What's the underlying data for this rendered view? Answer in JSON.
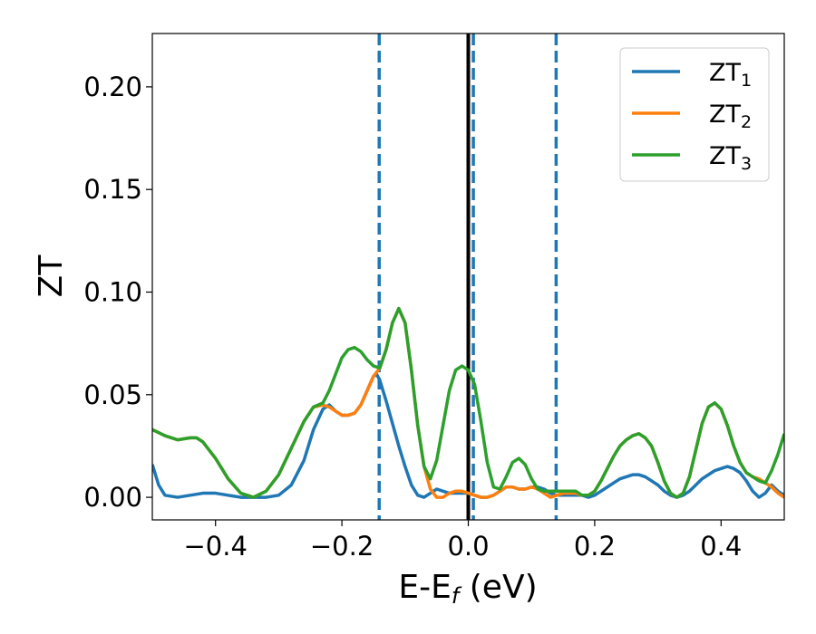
{
  "chart_data": {
    "type": "line",
    "xlabel": {
      "main": "E-E",
      "sub": "f",
      "unit": " (eV)"
    },
    "ylabel": "ZT",
    "xlim": [
      -0.5,
      0.5
    ],
    "ylim": [
      -0.011,
      0.226
    ],
    "x_ticks": [
      -0.4,
      -0.2,
      0.0,
      0.2,
      0.4
    ],
    "x_tick_labels": [
      "−0.4",
      "−0.2",
      "0.0",
      "0.2",
      "0.4"
    ],
    "y_ticks": [
      0.0,
      0.05,
      0.1,
      0.15,
      0.2
    ],
    "y_tick_labels": [
      "0.00",
      "0.05",
      "0.10",
      "0.15",
      "0.20"
    ],
    "grid": false,
    "legend_position": "top-right",
    "vertical_lines": [
      {
        "x": -0.141,
        "style": "dashed",
        "color": "#1f77b4"
      },
      {
        "x": 0.0,
        "style": "solid",
        "color": "#000000"
      },
      {
        "x": 0.008,
        "style": "dashed",
        "color": "#1f77b4"
      },
      {
        "x": 0.139,
        "style": "dashed",
        "color": "#1f77b4"
      }
    ],
    "series": [
      {
        "name": "ZT",
        "sub": "1",
        "color": "#1f77b4",
        "points": [
          [
            -0.5,
            0.016
          ],
          [
            -0.49,
            0.006
          ],
          [
            -0.48,
            0.001
          ],
          [
            -0.46,
            0.0
          ],
          [
            -0.44,
            0.001
          ],
          [
            -0.42,
            0.002
          ],
          [
            -0.4,
            0.002
          ],
          [
            -0.38,
            0.001
          ],
          [
            -0.36,
            0.0
          ],
          [
            -0.34,
            0.0
          ],
          [
            -0.32,
            0.0
          ],
          [
            -0.3,
            0.001
          ],
          [
            -0.28,
            0.006
          ],
          [
            -0.26,
            0.018
          ],
          [
            -0.245,
            0.033
          ],
          [
            -0.23,
            0.043
          ],
          [
            -0.22,
            0.045
          ],
          [
            -0.21,
            0.042
          ],
          [
            -0.2,
            0.04
          ],
          [
            -0.19,
            0.04
          ],
          [
            -0.18,
            0.041
          ],
          [
            -0.17,
            0.045
          ],
          [
            -0.16,
            0.052
          ],
          [
            -0.15,
            0.059
          ],
          [
            -0.145,
            0.06
          ],
          [
            -0.14,
            0.057
          ],
          [
            -0.13,
            0.047
          ],
          [
            -0.12,
            0.036
          ],
          [
            -0.11,
            0.025
          ],
          [
            -0.1,
            0.015
          ],
          [
            -0.09,
            0.006
          ],
          [
            -0.08,
            0.001
          ],
          [
            -0.07,
            0.0
          ],
          [
            -0.06,
            0.002
          ],
          [
            -0.05,
            0.004
          ],
          [
            -0.04,
            0.003
          ],
          [
            -0.03,
            0.002
          ],
          [
            -0.02,
            0.002
          ],
          [
            -0.01,
            0.002
          ],
          [
            0.0,
            0.002
          ],
          [
            0.01,
            0.001
          ],
          [
            0.02,
            0.0
          ],
          [
            0.03,
            0.0
          ],
          [
            0.04,
            0.001
          ],
          [
            0.05,
            0.003
          ],
          [
            0.06,
            0.005
          ],
          [
            0.07,
            0.005
          ],
          [
            0.08,
            0.004
          ],
          [
            0.09,
            0.004
          ],
          [
            0.1,
            0.005
          ],
          [
            0.11,
            0.005
          ],
          [
            0.12,
            0.004
          ],
          [
            0.13,
            0.002
          ],
          [
            0.14,
            0.001
          ],
          [
            0.15,
            0.001
          ],
          [
            0.16,
            0.001
          ],
          [
            0.17,
            0.001
          ],
          [
            0.18,
            0.001
          ],
          [
            0.19,
            0.0
          ],
          [
            0.2,
            0.001
          ],
          [
            0.21,
            0.003
          ],
          [
            0.22,
            0.005
          ],
          [
            0.23,
            0.007
          ],
          [
            0.24,
            0.009
          ],
          [
            0.25,
            0.01
          ],
          [
            0.26,
            0.011
          ],
          [
            0.27,
            0.011
          ],
          [
            0.28,
            0.01
          ],
          [
            0.29,
            0.008
          ],
          [
            0.3,
            0.006
          ],
          [
            0.31,
            0.003
          ],
          [
            0.32,
            0.001
          ],
          [
            0.33,
            0.0
          ],
          [
            0.34,
            0.001
          ],
          [
            0.35,
            0.003
          ],
          [
            0.36,
            0.006
          ],
          [
            0.37,
            0.009
          ],
          [
            0.38,
            0.011
          ],
          [
            0.39,
            0.013
          ],
          [
            0.4,
            0.014
          ],
          [
            0.41,
            0.015
          ],
          [
            0.42,
            0.014
          ],
          [
            0.43,
            0.012
          ],
          [
            0.44,
            0.008
          ],
          [
            0.45,
            0.003
          ],
          [
            0.46,
            0.0
          ],
          [
            0.47,
            0.002
          ],
          [
            0.48,
            0.006
          ],
          [
            0.49,
            0.003
          ],
          [
            0.5,
            0.001
          ]
        ]
      },
      {
        "name": "ZT",
        "sub": "2",
        "color": "#ff7f0e",
        "points": [
          [
            -0.5,
            0.033
          ],
          [
            -0.48,
            0.03
          ],
          [
            -0.46,
            0.028
          ],
          [
            -0.44,
            0.029
          ],
          [
            -0.43,
            0.029
          ],
          [
            -0.42,
            0.027
          ],
          [
            -0.4,
            0.019
          ],
          [
            -0.38,
            0.009
          ],
          [
            -0.36,
            0.002
          ],
          [
            -0.34,
            0.0
          ],
          [
            -0.32,
            0.003
          ],
          [
            -0.3,
            0.011
          ],
          [
            -0.28,
            0.024
          ],
          [
            -0.26,
            0.037
          ],
          [
            -0.245,
            0.044
          ],
          [
            -0.23,
            0.045
          ],
          [
            -0.22,
            0.044
          ],
          [
            -0.21,
            0.042
          ],
          [
            -0.2,
            0.04
          ],
          [
            -0.19,
            0.04
          ],
          [
            -0.18,
            0.041
          ],
          [
            -0.17,
            0.045
          ],
          [
            -0.16,
            0.052
          ],
          [
            -0.15,
            0.059
          ],
          [
            -0.14,
            0.063
          ],
          [
            -0.13,
            0.072
          ],
          [
            -0.12,
            0.085
          ],
          [
            -0.11,
            0.092
          ],
          [
            -0.1,
            0.085
          ],
          [
            -0.09,
            0.062
          ],
          [
            -0.08,
            0.035
          ],
          [
            -0.07,
            0.015
          ],
          [
            -0.06,
            0.004
          ],
          [
            -0.05,
            0.0
          ],
          [
            -0.04,
            0.0
          ],
          [
            -0.03,
            0.002
          ],
          [
            -0.02,
            0.003
          ],
          [
            -0.01,
            0.003
          ],
          [
            0.0,
            0.002
          ],
          [
            0.01,
            0.001
          ],
          [
            0.02,
            0.0
          ],
          [
            0.03,
            0.0
          ],
          [
            0.04,
            0.001
          ],
          [
            0.05,
            0.003
          ],
          [
            0.06,
            0.005
          ],
          [
            0.07,
            0.005
          ],
          [
            0.08,
            0.004
          ],
          [
            0.09,
            0.004
          ],
          [
            0.1,
            0.005
          ],
          [
            0.11,
            0.004
          ],
          [
            0.12,
            0.002
          ],
          [
            0.13,
            0.0
          ],
          [
            0.14,
            0.001
          ],
          [
            0.15,
            0.002
          ],
          [
            0.16,
            0.002
          ],
          [
            0.17,
            0.002
          ],
          [
            0.18,
            0.001
          ],
          [
            0.19,
            0.001
          ],
          [
            0.2,
            0.003
          ],
          [
            0.21,
            0.008
          ],
          [
            0.22,
            0.014
          ],
          [
            0.23,
            0.02
          ],
          [
            0.24,
            0.025
          ],
          [
            0.25,
            0.028
          ],
          [
            0.26,
            0.03
          ],
          [
            0.27,
            0.031
          ],
          [
            0.28,
            0.029
          ],
          [
            0.29,
            0.025
          ],
          [
            0.3,
            0.017
          ],
          [
            0.31,
            0.008
          ],
          [
            0.32,
            0.002
          ],
          [
            0.33,
            0.0
          ],
          [
            0.34,
            0.002
          ],
          [
            0.35,
            0.01
          ],
          [
            0.36,
            0.023
          ],
          [
            0.37,
            0.036
          ],
          [
            0.38,
            0.044
          ],
          [
            0.39,
            0.046
          ],
          [
            0.4,
            0.043
          ],
          [
            0.41,
            0.035
          ],
          [
            0.42,
            0.025
          ],
          [
            0.43,
            0.017
          ],
          [
            0.44,
            0.012
          ],
          [
            0.45,
            0.01
          ],
          [
            0.46,
            0.009
          ],
          [
            0.47,
            0.007
          ],
          [
            0.48,
            0.005
          ],
          [
            0.49,
            0.002
          ],
          [
            0.5,
            0.0
          ]
        ]
      },
      {
        "name": "ZT",
        "sub": "3",
        "color": "#2ca02c",
        "points": [
          [
            -0.5,
            0.033
          ],
          [
            -0.48,
            0.03
          ],
          [
            -0.46,
            0.028
          ],
          [
            -0.44,
            0.029
          ],
          [
            -0.43,
            0.029
          ],
          [
            -0.42,
            0.027
          ],
          [
            -0.4,
            0.019
          ],
          [
            -0.38,
            0.009
          ],
          [
            -0.36,
            0.002
          ],
          [
            -0.34,
            0.0
          ],
          [
            -0.32,
            0.003
          ],
          [
            -0.3,
            0.011
          ],
          [
            -0.28,
            0.024
          ],
          [
            -0.26,
            0.037
          ],
          [
            -0.245,
            0.044
          ],
          [
            -0.23,
            0.046
          ],
          [
            -0.22,
            0.052
          ],
          [
            -0.21,
            0.06
          ],
          [
            -0.2,
            0.068
          ],
          [
            -0.19,
            0.072
          ],
          [
            -0.18,
            0.073
          ],
          [
            -0.17,
            0.071
          ],
          [
            -0.16,
            0.067
          ],
          [
            -0.15,
            0.064
          ],
          [
            -0.14,
            0.063
          ],
          [
            -0.13,
            0.072
          ],
          [
            -0.12,
            0.085
          ],
          [
            -0.11,
            0.092
          ],
          [
            -0.1,
            0.085
          ],
          [
            -0.09,
            0.062
          ],
          [
            -0.08,
            0.035
          ],
          [
            -0.07,
            0.015
          ],
          [
            -0.06,
            0.009
          ],
          [
            -0.05,
            0.018
          ],
          [
            -0.04,
            0.035
          ],
          [
            -0.03,
            0.052
          ],
          [
            -0.02,
            0.062
          ],
          [
            -0.01,
            0.064
          ],
          [
            0.0,
            0.062
          ],
          [
            0.01,
            0.055
          ],
          [
            0.02,
            0.037
          ],
          [
            0.03,
            0.017
          ],
          [
            0.04,
            0.005
          ],
          [
            0.05,
            0.004
          ],
          [
            0.06,
            0.01
          ],
          [
            0.07,
            0.017
          ],
          [
            0.08,
            0.019
          ],
          [
            0.09,
            0.016
          ],
          [
            0.1,
            0.009
          ],
          [
            0.11,
            0.004
          ],
          [
            0.12,
            0.003
          ],
          [
            0.13,
            0.003
          ],
          [
            0.14,
            0.003
          ],
          [
            0.15,
            0.003
          ],
          [
            0.16,
            0.003
          ],
          [
            0.17,
            0.003
          ],
          [
            0.18,
            0.001
          ],
          [
            0.19,
            0.001
          ],
          [
            0.2,
            0.003
          ],
          [
            0.21,
            0.008
          ],
          [
            0.22,
            0.014
          ],
          [
            0.23,
            0.02
          ],
          [
            0.24,
            0.025
          ],
          [
            0.25,
            0.028
          ],
          [
            0.26,
            0.03
          ],
          [
            0.27,
            0.031
          ],
          [
            0.28,
            0.029
          ],
          [
            0.29,
            0.025
          ],
          [
            0.3,
            0.017
          ],
          [
            0.31,
            0.008
          ],
          [
            0.32,
            0.002
          ],
          [
            0.33,
            0.0
          ],
          [
            0.34,
            0.002
          ],
          [
            0.35,
            0.01
          ],
          [
            0.36,
            0.023
          ],
          [
            0.37,
            0.036
          ],
          [
            0.38,
            0.044
          ],
          [
            0.39,
            0.046
          ],
          [
            0.4,
            0.043
          ],
          [
            0.41,
            0.035
          ],
          [
            0.42,
            0.025
          ],
          [
            0.43,
            0.017
          ],
          [
            0.44,
            0.012
          ],
          [
            0.45,
            0.01
          ],
          [
            0.46,
            0.008
          ],
          [
            0.47,
            0.007
          ],
          [
            0.48,
            0.013
          ],
          [
            0.49,
            0.021
          ],
          [
            0.5,
            0.031
          ]
        ]
      }
    ]
  }
}
